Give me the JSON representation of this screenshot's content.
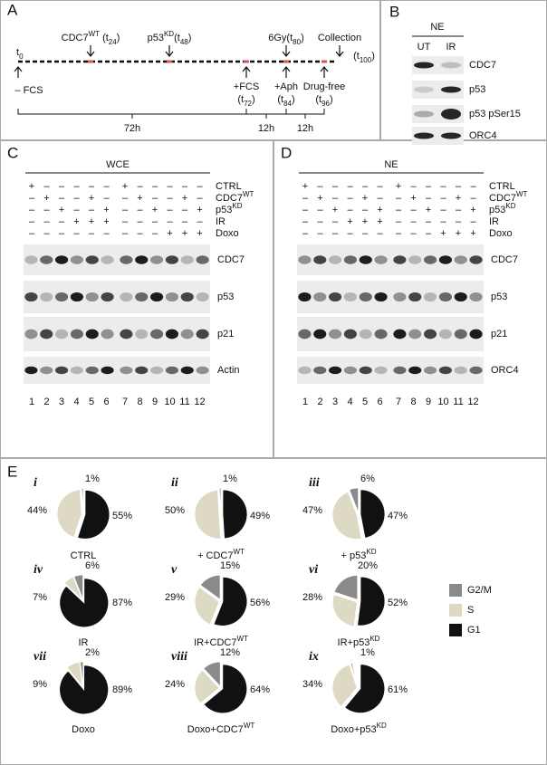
{
  "panel_labels": [
    "A",
    "B",
    "C",
    "D",
    "E"
  ],
  "panel_a": {
    "t0": [
      "t",
      {
        "sub": "0"
      }
    ],
    "events_above": [
      [
        "CDC7",
        {
          "sup": "WT"
        },
        " (t",
        {
          "sub": "24"
        },
        ")"
      ],
      [
        "p53",
        {
          "sup": "KD"
        },
        "(t",
        {
          "sub": "48"
        },
        ")"
      ],
      [
        "6Gy(t",
        {
          "sub": "80"
        },
        ")"
      ],
      [
        "Collection"
      ]
    ],
    "collection_time": [
      "(t",
      {
        "sub": "100"
      },
      ")"
    ],
    "start_label": "– FCS",
    "events_below": [
      {
        "line1": "+FCS",
        "line2": [
          "(t",
          {
            "sub": "72"
          },
          ")"
        ]
      },
      {
        "line1": "+Aph",
        "line2": [
          "(t",
          {
            "sub": "84"
          },
          ")"
        ]
      },
      {
        "line1": "Drug-free",
        "line2": [
          "(t",
          {
            "sub": "96"
          },
          ")"
        ]
      }
    ],
    "durations": [
      "72h",
      "12h",
      "12h"
    ]
  },
  "panel_b": {
    "header": "NE",
    "columns": [
      "UT",
      "IR"
    ],
    "rows": [
      "CDC7",
      "p53",
      "p53 pSer15",
      "ORC4"
    ]
  },
  "panels_cd": [
    {
      "header": "WCE",
      "conditions": [
        {
          "label": [
            "CTRL"
          ],
          "signs": [
            "+",
            "–",
            "–",
            "–",
            "–",
            "–",
            "+",
            "–",
            "–",
            "–",
            "–",
            "–"
          ]
        },
        {
          "label": [
            "CDC7",
            {
              "sup": "WT"
            }
          ],
          "signs": [
            "–",
            "+",
            "–",
            "–",
            "+",
            "–",
            "–",
            "+",
            "–",
            "–",
            "+",
            "–"
          ]
        },
        {
          "label": [
            "p53",
            {
              "sup": "KD"
            }
          ],
          "signs": [
            "–",
            "–",
            "+",
            "–",
            "–",
            "+",
            "–",
            "–",
            "+",
            "–",
            "–",
            "+"
          ]
        },
        {
          "label": [
            "IR"
          ],
          "signs": [
            "–",
            "–",
            "–",
            "+",
            "+",
            "+",
            "–",
            "–",
            "–",
            "–",
            "–",
            "–"
          ]
        },
        {
          "label": [
            "Doxo"
          ],
          "signs": [
            "–",
            "–",
            "–",
            "–",
            "–",
            "–",
            "–",
            "–",
            "–",
            "+",
            "+",
            "+"
          ]
        }
      ],
      "blots": [
        "CDC7",
        "p53",
        "p21",
        "Actin"
      ],
      "lanes": [
        "1",
        "2",
        "3",
        "4",
        "5",
        "6",
        "7",
        "8",
        "9",
        "10",
        "11",
        "12"
      ]
    },
    {
      "header": "NE",
      "conditions": [
        {
          "label": [
            "CTRL"
          ],
          "signs": [
            "+",
            "–",
            "–",
            "–",
            "–",
            "–",
            "+",
            "–",
            "–",
            "–",
            "–",
            "–"
          ]
        },
        {
          "label": [
            "CDC7",
            {
              "sup": "WT"
            }
          ],
          "signs": [
            "–",
            "+",
            "–",
            "–",
            "+",
            "–",
            "–",
            "+",
            "–",
            "–",
            "+",
            "–"
          ]
        },
        {
          "label": [
            "p53",
            {
              "sup": "KD"
            }
          ],
          "signs": [
            "–",
            "–",
            "+",
            "–",
            "–",
            "+",
            "–",
            "–",
            "+",
            "–",
            "–",
            "+"
          ]
        },
        {
          "label": [
            "IR"
          ],
          "signs": [
            "–",
            "–",
            "–",
            "+",
            "+",
            "+",
            "–",
            "–",
            "–",
            "–",
            "–",
            "–"
          ]
        },
        {
          "label": [
            "Doxo"
          ],
          "signs": [
            "–",
            "–",
            "–",
            "–",
            "–",
            "–",
            "–",
            "–",
            "–",
            "+",
            "+",
            "+"
          ]
        }
      ],
      "blots": [
        "CDC7",
        "p53",
        "p21",
        "ORC4"
      ],
      "lanes": [
        "1",
        "2",
        "3",
        "4",
        "5",
        "6",
        "7",
        "8",
        "9",
        "10",
        "11",
        "12"
      ]
    }
  ],
  "panel_e": {
    "type": "pie",
    "series": [
      {
        "name": "G2/M",
        "color": "#8a8a8a"
      },
      {
        "name": "S",
        "color": "#ddd9c3"
      },
      {
        "name": "G1",
        "color": "#111111"
      }
    ],
    "pies": [
      {
        "numeral": "i",
        "caption": [
          "CTRL"
        ],
        "values": [
          1,
          44,
          55
        ],
        "value_labels": [
          "1%",
          "44%",
          "55%"
        ]
      },
      {
        "numeral": "ii",
        "caption": [
          "+ CDC7",
          {
            "sup": "WT"
          }
        ],
        "values": [
          1,
          50,
          49
        ],
        "value_labels": [
          "1%",
          "50%",
          "49%"
        ]
      },
      {
        "numeral": "iii",
        "caption": [
          "+ p53",
          {
            "sup": "KD"
          }
        ],
        "values": [
          6,
          47,
          47
        ],
        "value_labels": [
          "6%",
          "47%",
          "47%"
        ]
      },
      {
        "numeral": "iv",
        "caption": [
          "IR"
        ],
        "values": [
          6,
          7,
          87
        ],
        "value_labels": [
          "6%",
          "7%",
          "87%"
        ]
      },
      {
        "numeral": "v",
        "caption": [
          "IR+CDC7",
          {
            "sup": "WT"
          }
        ],
        "values": [
          15,
          29,
          56
        ],
        "value_labels": [
          "15%",
          "29%",
          "56%"
        ]
      },
      {
        "numeral": "vi",
        "caption": [
          "IR+p53",
          {
            "sup": "KD"
          }
        ],
        "values": [
          20,
          28,
          52
        ],
        "value_labels": [
          "20%",
          "28%",
          "52%"
        ]
      },
      {
        "numeral": "vii",
        "caption": [
          "Doxo"
        ],
        "values": [
          2,
          9,
          89
        ],
        "value_labels": [
          "2%",
          "9%",
          "89%"
        ]
      },
      {
        "numeral": "viii",
        "caption": [
          "Doxo+CDC7",
          {
            "sup": "WT"
          }
        ],
        "values": [
          12,
          24,
          64
        ],
        "value_labels": [
          "12%",
          "24%",
          "64%"
        ]
      },
      {
        "numeral": "ix",
        "caption": [
          "Doxo+p53",
          {
            "sup": "KD"
          }
        ],
        "values": [
          1,
          34,
          61
        ],
        "value_labels": [
          "1%",
          "34%",
          "61%"
        ]
      }
    ]
  }
}
